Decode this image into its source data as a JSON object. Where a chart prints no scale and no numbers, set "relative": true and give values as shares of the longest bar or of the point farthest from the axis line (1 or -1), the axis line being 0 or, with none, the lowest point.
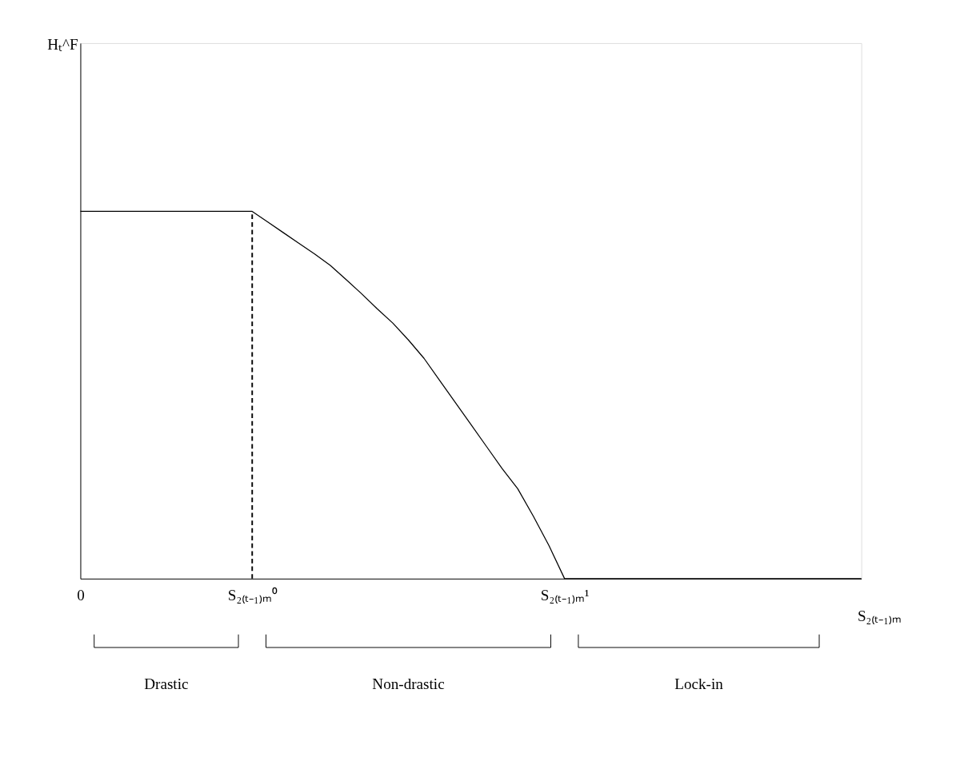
{
  "chart_data": {
    "type": "line",
    "relative": true,
    "xlabel": "S₂₍ₜ₋₁₎ₘ",
    "categories": [
      "0",
      null,
      null,
      null,
      null,
      null,
      null,
      null,
      null,
      null,
      null,
      "S₂₍ₜ₋₁₎ₘ⁰",
      null,
      null,
      null,
      null,
      null,
      null,
      null,
      null,
      null,
      null,
      null,
      null,
      null,
      null,
      null,
      null,
      null,
      null,
      null,
      "S₂₍ₜ₋₁₎ₘ¹",
      null,
      null,
      null,
      null,
      null,
      null,
      null,
      null,
      null,
      null,
      null,
      null,
      null,
      null,
      null,
      null,
      null,
      null,
      null
    ],
    "series": [
      {
        "color": "#000000",
        "values": [
          1,
          1,
          1,
          1,
          1,
          1,
          1,
          1,
          1,
          1,
          1,
          1,
          0.971,
          0.942,
          0.913,
          0.884,
          0.853,
          0.815,
          0.776,
          0.735,
          0.696,
          0.65,
          0.6,
          0.54,
          0.48,
          0.42,
          0.36,
          0.3,
          0.245,
          0.17,
          0.09,
          0,
          0,
          0,
          0,
          0,
          0,
          0,
          0,
          0,
          0,
          0,
          0,
          0,
          0,
          0,
          0,
          0,
          0,
          0,
          0
        ]
      }
    ],
    "ref_lines": [
      {
        "axis": "x",
        "value": "S₂₍ₜ₋₁₎ₘ⁰",
        "color": "#000000",
        "line_style": "dashed"
      }
    ],
    "annotations": [
      "Hₜ^F",
      "Drastic",
      "Non-drastic",
      "Lock-in"
    ],
    "grid": false,
    "line_style": "solid",
    "marker": "none"
  }
}
